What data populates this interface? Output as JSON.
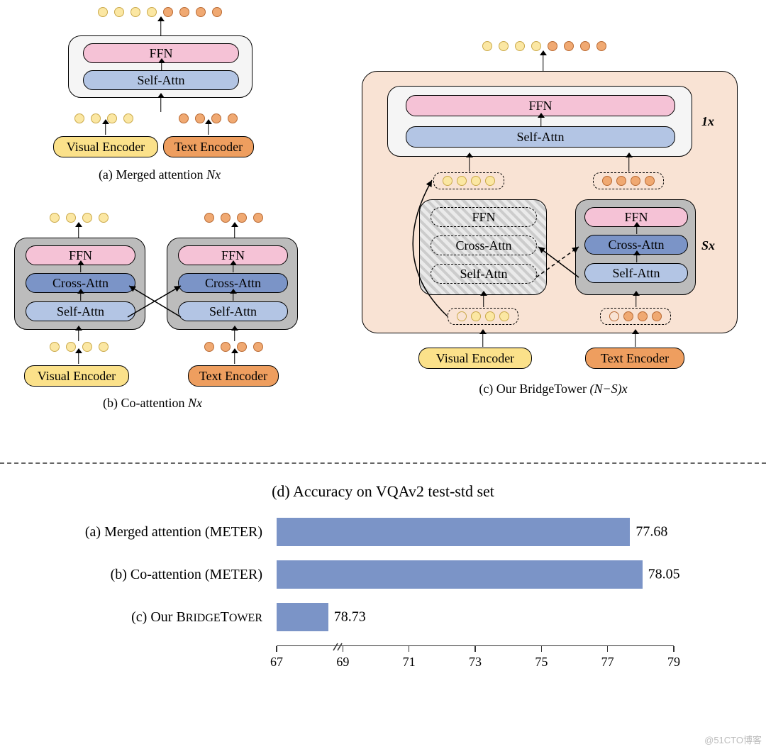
{
  "colors": {
    "dot_yellow": "#fbe7a3",
    "dot_orange": "#f0a972",
    "encoder_yellow": "#fbe18a",
    "encoder_orange": "#ee9e5f",
    "ffn_pink": "#f5c2d6",
    "crossattn_blue": "#7b94c7",
    "selfattn_blue": "#b3c5e4",
    "box_white": "#f5f5f5",
    "box_gray": "#bcbcbc",
    "box_peach": "#f9e3d4",
    "bar_fill": "#7b94c7",
    "hatch_bg": "#eaeaea"
  },
  "labels": {
    "ffn": "FFN",
    "crossattn": "Cross-Attn",
    "selfattn": "Self-Attn",
    "visual_encoder": "Visual Encoder",
    "text_encoder": "Text Encoder",
    "mult_1x": "1x",
    "mult_sx": "Sx"
  },
  "captions": {
    "a": {
      "main": "(a) Merged attention",
      "mult": "Nx"
    },
    "b": {
      "main": "(b) Co-attention",
      "mult": "Nx"
    },
    "c": {
      "main": "(c) Our BridgeTower",
      "mult": "(N−S)x"
    }
  },
  "chart": {
    "title": "(d) Accuracy on VQAv2 test-std set",
    "x_axis": {
      "min": 67,
      "max": 79,
      "ticks": [
        67,
        69,
        71,
        73,
        75,
        77,
        79
      ],
      "fontsize": 18
    },
    "bars": [
      {
        "label": "(a) Merged attention (METER)",
        "value": 77.68
      },
      {
        "label": "(b) Co-attention (METER)",
        "value": 78.05
      },
      {
        "label": "(c) Our BRIDGETOWER",
        "value": 78.73,
        "bold_part": "RIDGE",
        "bold_part2": "OWER"
      }
    ],
    "bar_color": "#7b94c7",
    "label_fontsize": 20,
    "value_fontsize": 20
  },
  "watermark": "@51CTO博客"
}
